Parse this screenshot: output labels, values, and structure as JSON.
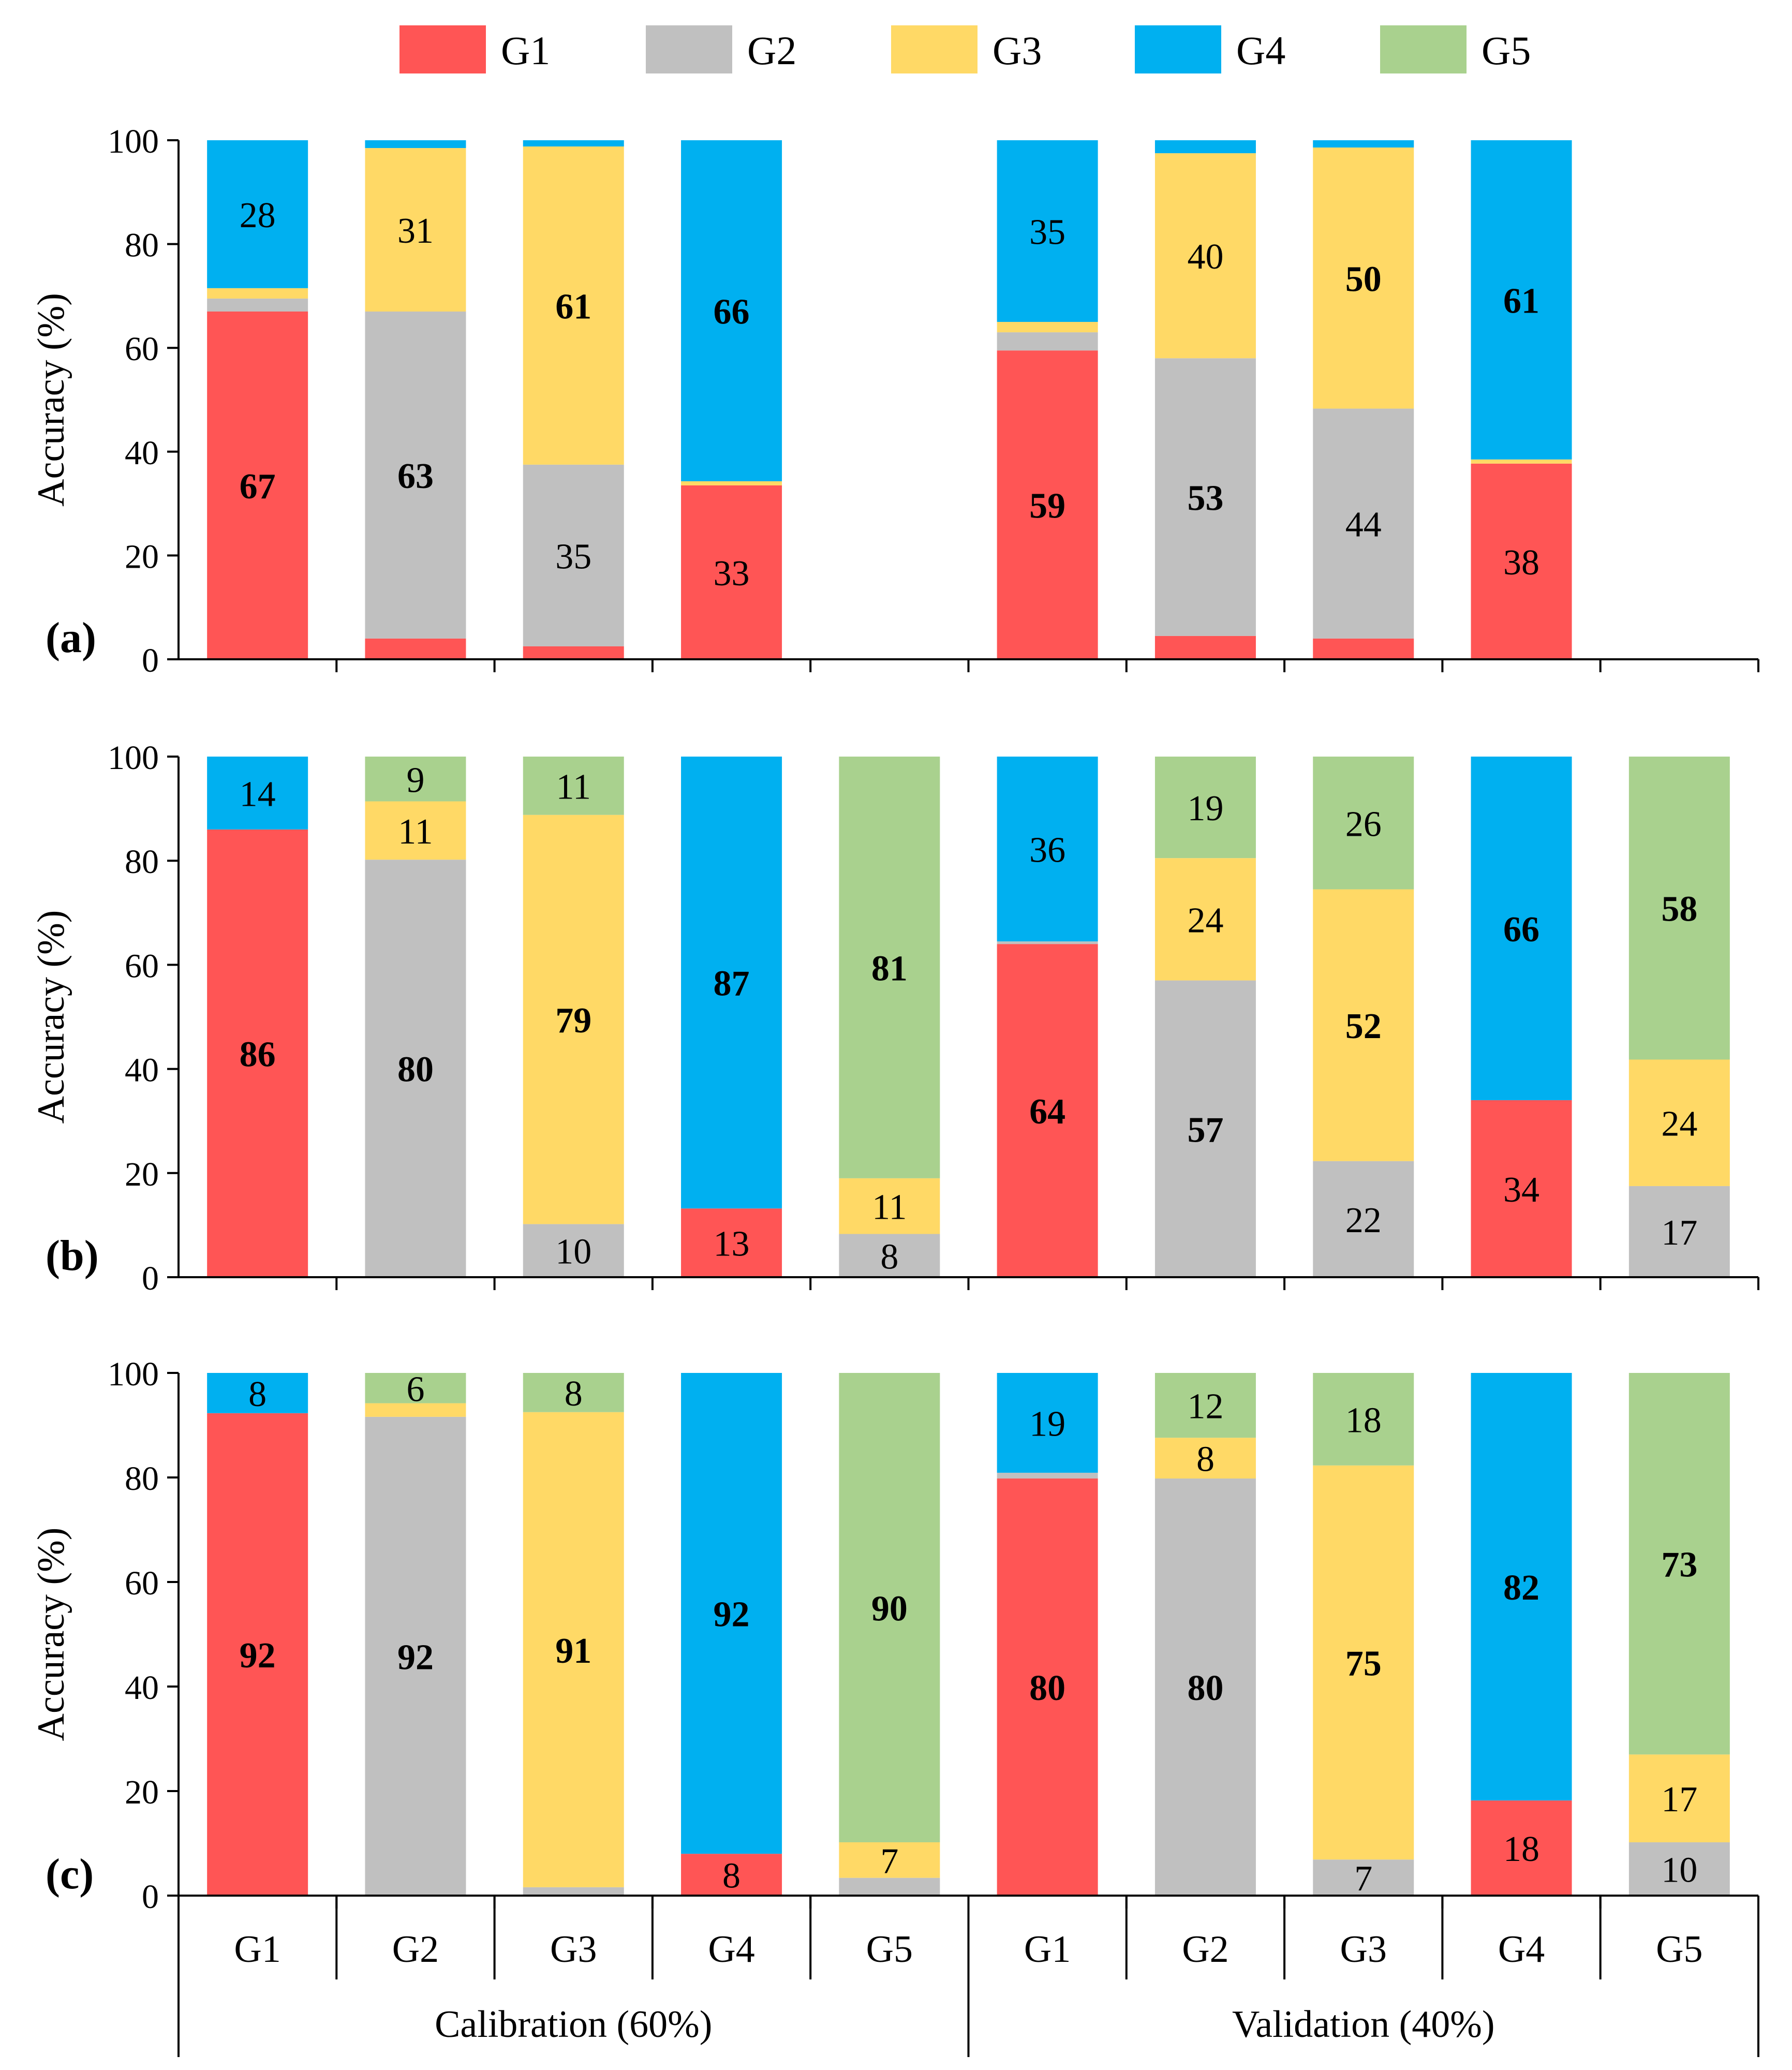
{
  "colors": {
    "G1": "#FF5555",
    "G2": "#C0C0C0",
    "G3": "#FFD966",
    "G4": "#00B0F0",
    "G5": "#A9D18E"
  },
  "chart_data": {
    "type": "bar",
    "stacked": true,
    "legend": {
      "position": "top",
      "entries": [
        "G1",
        "G2",
        "G3",
        "G4",
        "G5"
      ]
    },
    "group_labels": [
      "Calibration (60%)",
      "Validation (40%)"
    ],
    "categories": [
      "G1",
      "G2",
      "G3",
      "G4",
      "G5",
      "G1",
      "G2",
      "G3",
      "G4",
      "G5"
    ],
    "ylabel": "Accuracy (%)",
    "ylim": [
      0,
      100
    ],
    "yticks": [
      "0",
      "20",
      "40",
      "60",
      "80",
      "100"
    ],
    "grid": false,
    "panels": [
      {
        "label": "(a)",
        "bars": [
          {
            "segments": [
              {
                "c": "G1",
                "v": 67,
                "l": "67",
                "b": true
              },
              {
                "c": "G2",
                "v": 2.5
              },
              {
                "c": "G3",
                "v": 2
              },
              {
                "c": "G4",
                "v": 28.5,
                "l": "28"
              }
            ]
          },
          {
            "segments": [
              {
                "c": "G1",
                "v": 4
              },
              {
                "c": "G2",
                "v": 63,
                "l": "63",
                "b": true
              },
              {
                "c": "G3",
                "v": 31.5,
                "l": "31"
              },
              {
                "c": "G4",
                "v": 1.5
              }
            ]
          },
          {
            "segments": [
              {
                "c": "G1",
                "v": 2.5
              },
              {
                "c": "G2",
                "v": 35,
                "l": "35"
              },
              {
                "c": "G3",
                "v": 61.3,
                "l": "61",
                "b": true
              },
              {
                "c": "G4",
                "v": 1.2
              }
            ]
          },
          {
            "segments": [
              {
                "c": "G1",
                "v": 33.5,
                "l": "33"
              },
              {
                "c": "G3",
                "v": 0.8
              },
              {
                "c": "G4",
                "v": 65.7,
                "l": "66",
                "b": true
              }
            ]
          },
          {
            "segments": []
          },
          {
            "segments": [
              {
                "c": "G1",
                "v": 59.5,
                "l": "59",
                "b": true
              },
              {
                "c": "G2",
                "v": 3.5
              },
              {
                "c": "G3",
                "v": 2
              },
              {
                "c": "G4",
                "v": 35,
                "l": "35"
              }
            ]
          },
          {
            "segments": [
              {
                "c": "G1",
                "v": 4.5
              },
              {
                "c": "G2",
                "v": 53.5,
                "l": "53",
                "b": true
              },
              {
                "c": "G3",
                "v": 39.5,
                "l": "40"
              },
              {
                "c": "G4",
                "v": 2.5
              }
            ]
          },
          {
            "segments": [
              {
                "c": "G1",
                "v": 4
              },
              {
                "c": "G2",
                "v": 44.3,
                "l": "44"
              },
              {
                "c": "G3",
                "v": 50.3,
                "l": "50",
                "b": true
              },
              {
                "c": "G4",
                "v": 1.4
              }
            ]
          },
          {
            "segments": [
              {
                "c": "G1",
                "v": 37.7,
                "l": "38"
              },
              {
                "c": "G3",
                "v": 0.8
              },
              {
                "c": "G4",
                "v": 61.5,
                "l": "61",
                "b": true
              }
            ]
          },
          {
            "segments": []
          }
        ]
      },
      {
        "label": "(b)",
        "bars": [
          {
            "segments": [
              {
                "c": "G1",
                "v": 86,
                "l": "86",
                "b": true
              },
              {
                "c": "G4",
                "v": 14,
                "l": "14"
              }
            ]
          },
          {
            "segments": [
              {
                "c": "G2",
                "v": 80.2,
                "l": "80",
                "b": true
              },
              {
                "c": "G3",
                "v": 11.2,
                "l": "11"
              },
              {
                "c": "G5",
                "v": 8.6,
                "l": "9"
              }
            ]
          },
          {
            "segments": [
              {
                "c": "G2",
                "v": 10.2,
                "l": "10"
              },
              {
                "c": "G3",
                "v": 78.6,
                "l": "79",
                "b": true
              },
              {
                "c": "G5",
                "v": 11.2,
                "l": "11"
              }
            ]
          },
          {
            "segments": [
              {
                "c": "G1",
                "v": 13.2,
                "l": "13"
              },
              {
                "c": "G4",
                "v": 86.8,
                "l": "87",
                "b": true
              }
            ]
          },
          {
            "segments": [
              {
                "c": "G2",
                "v": 8.3,
                "l": "8"
              },
              {
                "c": "G3",
                "v": 10.7,
                "l": "11"
              },
              {
                "c": "G5",
                "v": 81,
                "l": "81",
                "b": true
              }
            ]
          },
          {
            "segments": [
              {
                "c": "G1",
                "v": 64,
                "l": "64",
                "b": true
              },
              {
                "c": "G2",
                "v": 0.5
              },
              {
                "c": "G4",
                "v": 35.5,
                "l": "36"
              }
            ]
          },
          {
            "segments": [
              {
                "c": "G2",
                "v": 57,
                "l": "57",
                "b": true
              },
              {
                "c": "G3",
                "v": 23.5,
                "l": "24"
              },
              {
                "c": "G5",
                "v": 19.5,
                "l": "19"
              }
            ]
          },
          {
            "segments": [
              {
                "c": "G2",
                "v": 22.3,
                "l": "22"
              },
              {
                "c": "G3",
                "v": 52.2,
                "l": "52",
                "b": true
              },
              {
                "c": "G5",
                "v": 25.5,
                "l": "26"
              }
            ]
          },
          {
            "segments": [
              {
                "c": "G1",
                "v": 34,
                "l": "34"
              },
              {
                "c": "G4",
                "v": 66,
                "l": "66",
                "b": true
              }
            ]
          },
          {
            "segments": [
              {
                "c": "G2",
                "v": 17.5,
                "l": "17"
              },
              {
                "c": "G3",
                "v": 24.3,
                "l": "24"
              },
              {
                "c": "G5",
                "v": 58.2,
                "l": "58",
                "b": true
              }
            ]
          }
        ]
      },
      {
        "label": "(c)",
        "bars": [
          {
            "segments": [
              {
                "c": "G1",
                "v": 92.3,
                "l": "92",
                "b": true
              },
              {
                "c": "G4",
                "v": 7.7,
                "l": "8"
              }
            ]
          },
          {
            "segments": [
              {
                "c": "G2",
                "v": 91.6,
                "l": "92",
                "b": true
              },
              {
                "c": "G3",
                "v": 2.6
              },
              {
                "c": "G5",
                "v": 5.8,
                "l": "6"
              }
            ]
          },
          {
            "segments": [
              {
                "c": "G2",
                "v": 1.6
              },
              {
                "c": "G3",
                "v": 90.9,
                "l": "91",
                "b": true
              },
              {
                "c": "G5",
                "v": 7.5,
                "l": "8"
              }
            ]
          },
          {
            "segments": [
              {
                "c": "G1",
                "v": 8,
                "l": "8"
              },
              {
                "c": "G4",
                "v": 92,
                "l": "92",
                "b": true
              }
            ]
          },
          {
            "segments": [
              {
                "c": "G2",
                "v": 3.4
              },
              {
                "c": "G3",
                "v": 6.8,
                "l": "7"
              },
              {
                "c": "G5",
                "v": 89.8,
                "l": "90",
                "b": true
              }
            ]
          },
          {
            "segments": [
              {
                "c": "G1",
                "v": 79.8,
                "l": "80",
                "b": true
              },
              {
                "c": "G2",
                "v": 1.1
              },
              {
                "c": "G4",
                "v": 19.1,
                "l": "19"
              }
            ]
          },
          {
            "segments": [
              {
                "c": "G2",
                "v": 79.8,
                "l": "80",
                "b": true
              },
              {
                "c": "G3",
                "v": 7.8,
                "l": "8"
              },
              {
                "c": "G5",
                "v": 12.4,
                "l": "12"
              }
            ]
          },
          {
            "segments": [
              {
                "c": "G2",
                "v": 6.9,
                "l": "7"
              },
              {
                "c": "G3",
                "v": 75.4,
                "l": "75",
                "b": true
              },
              {
                "c": "G5",
                "v": 17.7,
                "l": "18"
              }
            ]
          },
          {
            "segments": [
              {
                "c": "G1",
                "v": 18.2,
                "l": "18"
              },
              {
                "c": "G4",
                "v": 81.8,
                "l": "82",
                "b": true
              }
            ]
          },
          {
            "segments": [
              {
                "c": "G2",
                "v": 10.2,
                "l": "10"
              },
              {
                "c": "G3",
                "v": 16.8,
                "l": "17"
              },
              {
                "c": "G5",
                "v": 73,
                "l": "73",
                "b": true
              }
            ]
          }
        ]
      }
    ]
  }
}
